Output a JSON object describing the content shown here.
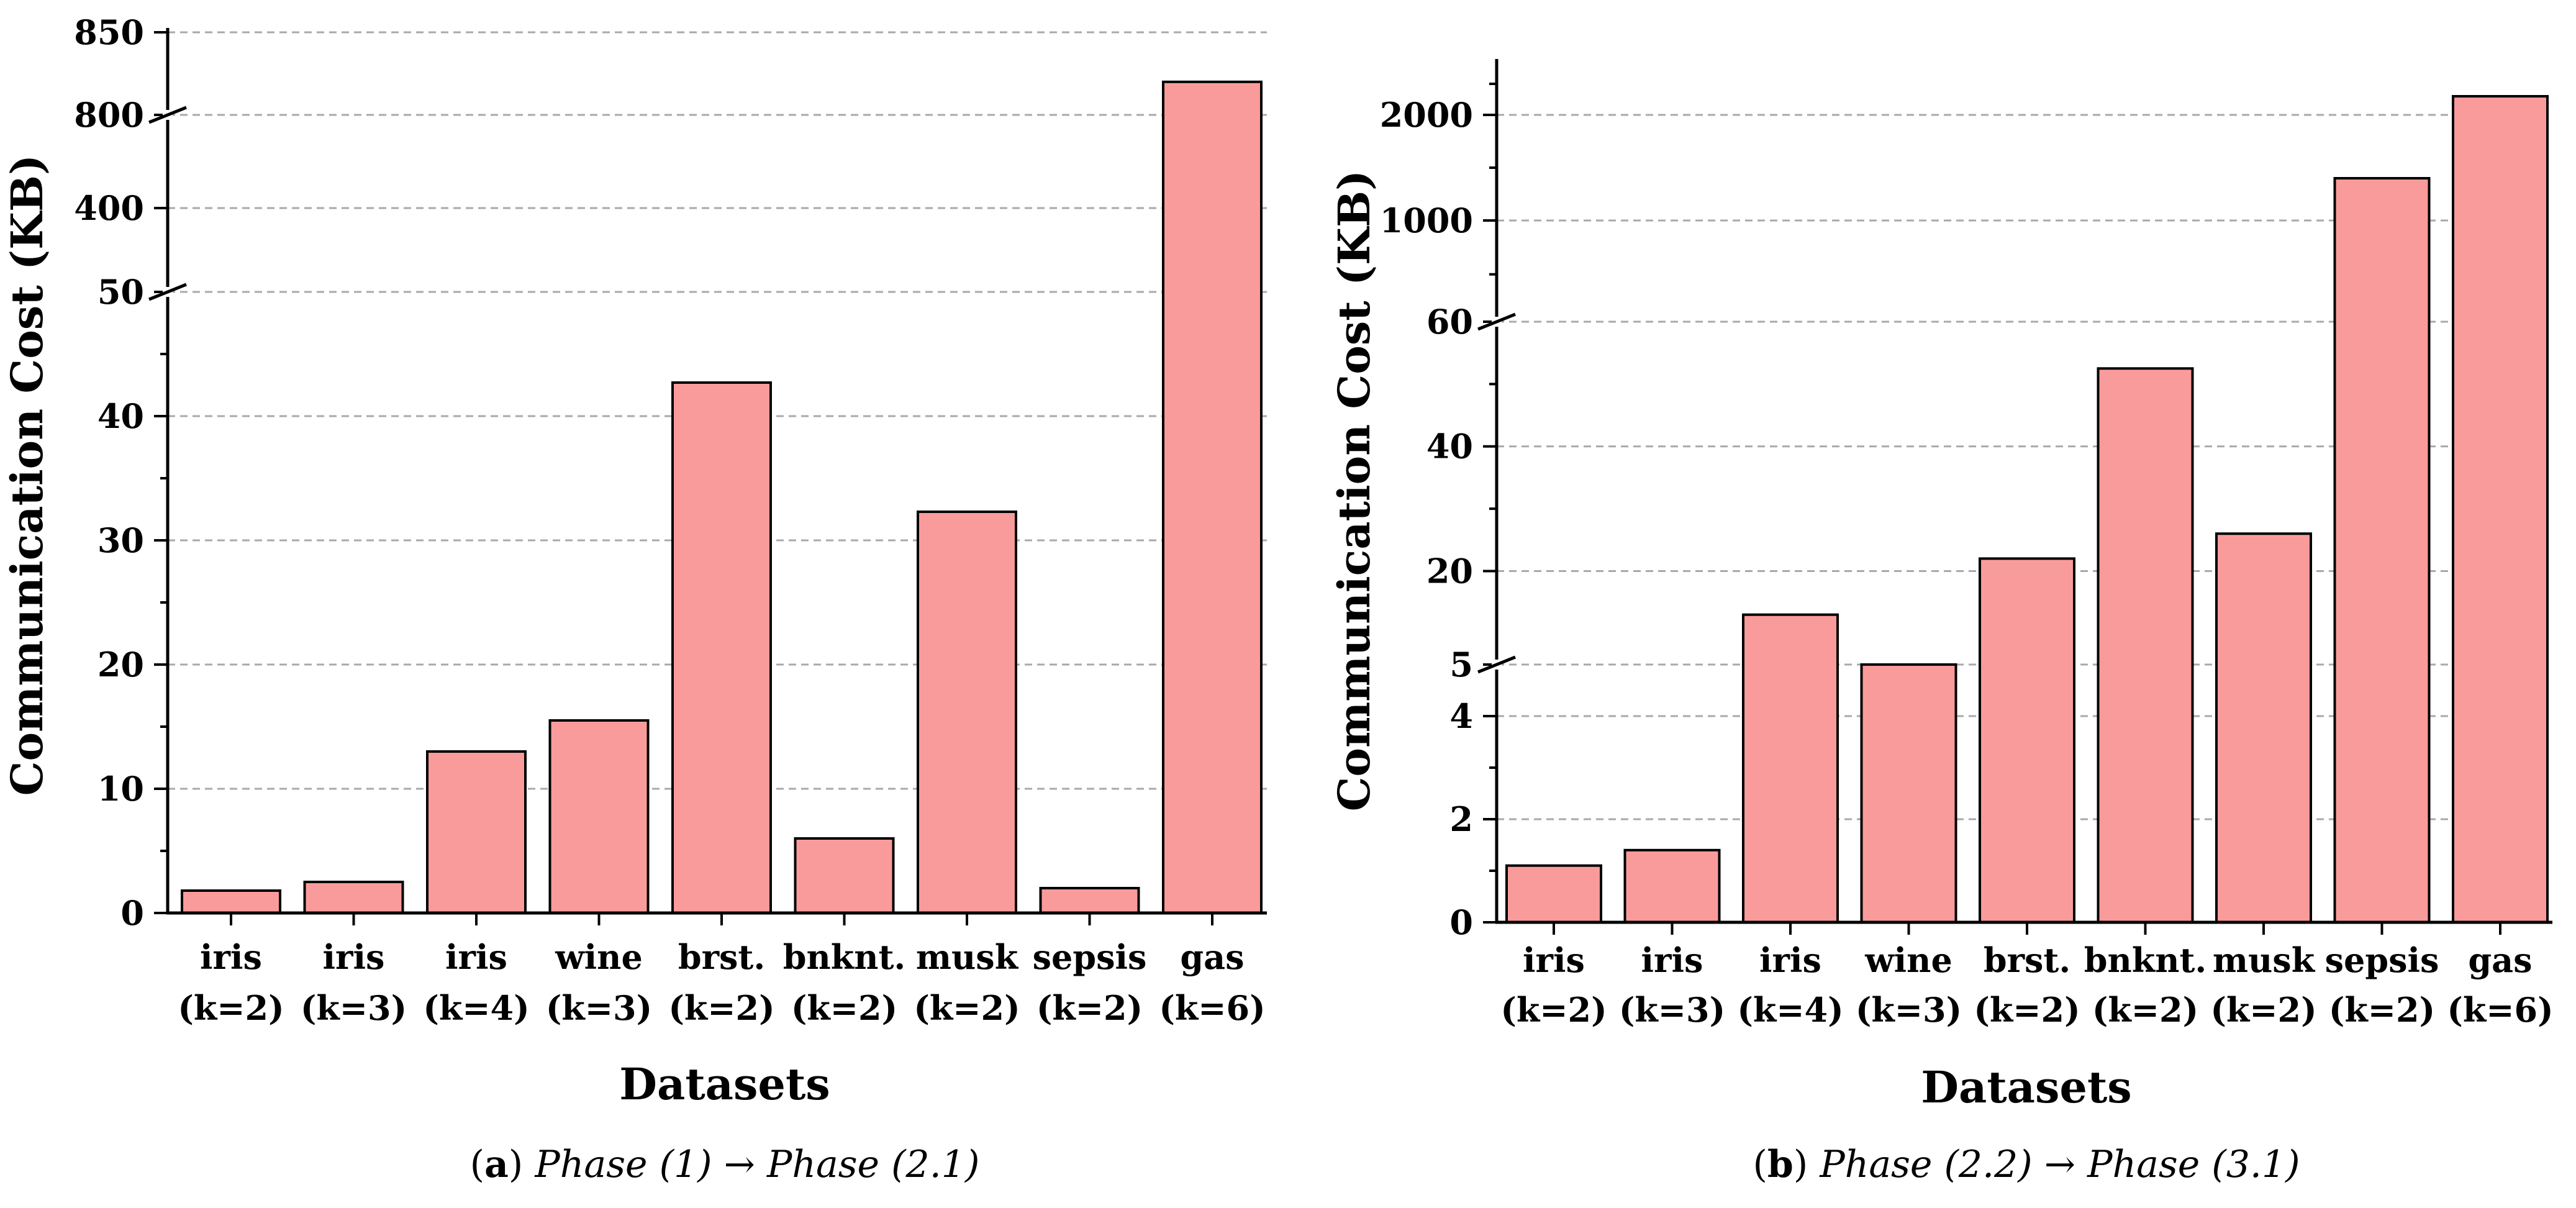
{
  "chart_data": [
    {
      "type": "bar",
      "panel_letter": "a",
      "caption": {
        "from": "Phase (1)",
        "arrow": "→",
        "to": "Phase (2.1)"
      },
      "xlabel": "Datasets",
      "ylabel": "Communication Cost (KB)",
      "categories": [
        {
          "name": "iris",
          "k": "(k=2)"
        },
        {
          "name": "iris",
          "k": "(k=3)"
        },
        {
          "name": "iris",
          "k": "(k=4)"
        },
        {
          "name": "wine",
          "k": "(k=3)"
        },
        {
          "name": "brst.",
          "k": "(k=2)"
        },
        {
          "name": "bnknt.",
          "k": "(k=2)"
        },
        {
          "name": "musk",
          "k": "(k=2)"
        },
        {
          "name": "sepsis",
          "k": "(k=2)"
        },
        {
          "name": "gas",
          "k": "(k=6)"
        }
      ],
      "values": [
        1.8,
        2.5,
        13,
        15.5,
        42.7,
        6,
        32.3,
        2,
        820
      ],
      "y_axis_segments": [
        {
          "ylim": [
            0,
            50
          ],
          "ticks": [
            "0",
            "10",
            "20",
            "30",
            "40",
            "50"
          ],
          "minor_ticks": [
            5,
            15,
            25,
            35,
            45
          ]
        },
        {
          "ylim": [
            50,
            400
          ],
          "ticks": [
            "400"
          ],
          "minor_ticks": []
        },
        {
          "ylim": [
            400,
            800
          ],
          "ticks": [
            "800"
          ],
          "minor_ticks": []
        },
        {
          "ylim": [
            800,
            850
          ],
          "ticks": [
            "850"
          ],
          "minor_ticks": []
        }
      ],
      "axis_breaks": [
        50,
        800
      ],
      "grid": true,
      "bar_color": "#fa9b9b"
    },
    {
      "type": "bar",
      "panel_letter": "b",
      "caption": {
        "from": "Phase (2.2)",
        "arrow": "→",
        "to": "Phase (3.1)"
      },
      "xlabel": "Datasets",
      "ylabel": "Communication Cost (KB)",
      "categories": [
        {
          "name": "iris",
          "k": "(k=2)"
        },
        {
          "name": "iris",
          "k": "(k=3)"
        },
        {
          "name": "iris",
          "k": "(k=4)"
        },
        {
          "name": "wine",
          "k": "(k=3)"
        },
        {
          "name": "brst.",
          "k": "(k=2)"
        },
        {
          "name": "bnknt.",
          "k": "(k=2)"
        },
        {
          "name": "musk",
          "k": "(k=2)"
        },
        {
          "name": "sepsis",
          "k": "(k=2)"
        },
        {
          "name": "gas",
          "k": "(k=6)"
        }
      ],
      "values": [
        1.1,
        1.4,
        13,
        5,
        22,
        52.5,
        26,
        1400,
        2300
      ],
      "y_axis_segments": [
        {
          "ylim": [
            0,
            5
          ],
          "ticks": [
            "0",
            "2",
            "4",
            "5"
          ],
          "minor_ticks": [
            1,
            3
          ]
        },
        {
          "ylim": [
            5,
            60
          ],
          "ticks": [
            "20",
            "40",
            "60"
          ],
          "minor_ticks": [
            30,
            50
          ]
        },
        {
          "ylim": [
            60,
            1000
          ],
          "ticks": [
            "1000"
          ],
          "minor_ticks": [
            500
          ]
        },
        {
          "ylim": [
            1000,
            2000
          ],
          "ticks": [
            "2000"
          ],
          "minor_ticks": [
            1500
          ]
        },
        {
          "ylim": [
            2000,
            2900
          ],
          "ticks": [],
          "minor_ticks": [
            2500
          ]
        }
      ],
      "axis_breaks": [
        5,
        60
      ],
      "grid": true,
      "bar_color": "#fa9b9b"
    }
  ]
}
